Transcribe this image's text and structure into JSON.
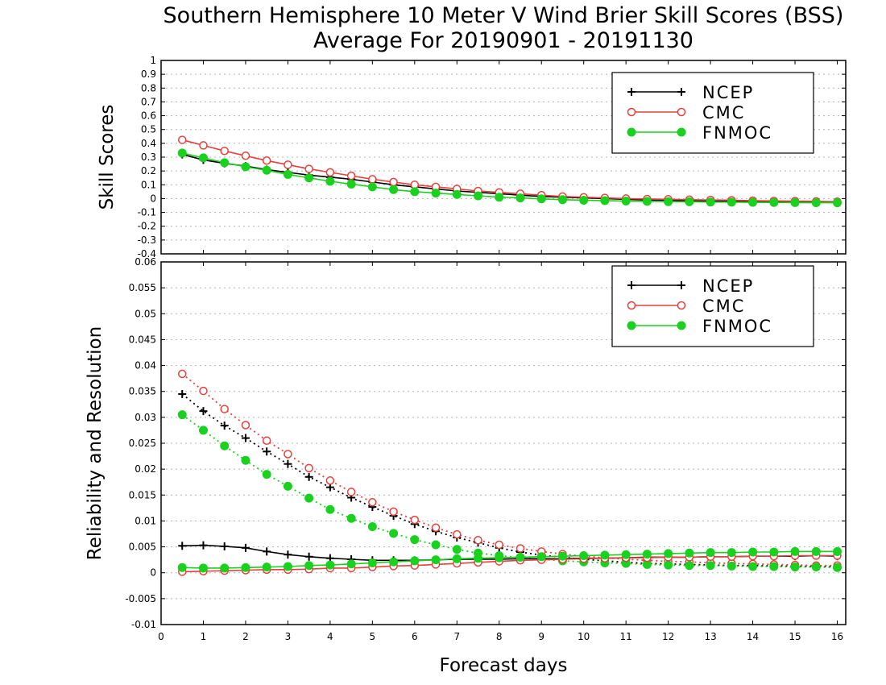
{
  "title_line1": "Southern Hemisphere 10 Meter V Wind Brier Skill Scores (BSS)",
  "title_line2": "Average For 20190901 - 20191130",
  "xlabel": "Forecast days",
  "colors": {
    "NCEP": "#000000",
    "CMC": "#e8403c",
    "FNMOC": "#19d11e"
  },
  "chart_data": [
    {
      "type": "line",
      "ylabel": "Skill Scores",
      "xlim": [
        0,
        16.2
      ],
      "ylim": [
        -0.4,
        1
      ],
      "x_ticks": [
        0,
        1,
        2,
        3,
        4,
        5,
        6,
        7,
        8,
        9,
        10,
        11,
        12,
        13,
        14,
        15,
        16
      ],
      "y_ticks": [
        -0.4,
        -0.3,
        -0.2,
        -0.1,
        0,
        0.1,
        0.2,
        0.3,
        0.4,
        0.5,
        0.6,
        0.7,
        0.8,
        0.9,
        1
      ],
      "y_tick_labels": [
        "-0.4",
        "-0.3",
        "-0.2",
        "-0.1",
        "0",
        "0.1",
        "0.2",
        "0.3",
        "0.4",
        "0.5",
        "0.6",
        "0.7",
        "0.8",
        "0.9",
        "1"
      ],
      "grid": true,
      "legend": "top-right",
      "x": [
        0.5,
        1,
        1.5,
        2,
        2.5,
        3,
        3.5,
        4,
        4.5,
        5,
        5.5,
        6,
        6.5,
        7,
        7.5,
        8,
        8.5,
        9,
        9.5,
        10,
        10.5,
        11,
        11.5,
        12,
        12.5,
        13,
        13.5,
        14,
        14.5,
        15,
        15.5,
        16
      ],
      "series": [
        {
          "name": "NCEP",
          "marker": "plus",
          "style": "solid",
          "values": [
            0.32,
            0.28,
            0.255,
            0.235,
            0.21,
            0.19,
            0.17,
            0.155,
            0.14,
            0.12,
            0.1,
            0.085,
            0.07,
            0.055,
            0.045,
            0.035,
            0.025,
            0.015,
            0.01,
            0.005,
            0.0,
            -0.005,
            -0.01,
            -0.012,
            -0.015,
            -0.017,
            -0.02,
            -0.022,
            -0.023,
            -0.025,
            -0.027,
            -0.028
          ]
        },
        {
          "name": "CMC",
          "marker": "open-circle",
          "style": "solid",
          "values": [
            0.425,
            0.385,
            0.345,
            0.31,
            0.275,
            0.245,
            0.215,
            0.19,
            0.165,
            0.14,
            0.12,
            0.1,
            0.085,
            0.07,
            0.055,
            0.045,
            0.035,
            0.025,
            0.015,
            0.01,
            0.005,
            0.0,
            -0.003,
            -0.005,
            -0.008,
            -0.01,
            -0.012,
            -0.015,
            -0.017,
            -0.018,
            -0.02,
            -0.022
          ]
        },
        {
          "name": "FNMOC",
          "marker": "filled-circle",
          "style": "solid",
          "values": [
            0.33,
            0.295,
            0.26,
            0.23,
            0.205,
            0.175,
            0.15,
            0.125,
            0.105,
            0.085,
            0.065,
            0.05,
            0.04,
            0.03,
            0.02,
            0.01,
            0.005,
            -0.002,
            -0.008,
            -0.012,
            -0.015,
            -0.018,
            -0.02,
            -0.022,
            -0.023,
            -0.025,
            -0.026,
            -0.027,
            -0.028,
            -0.029,
            -0.03,
            -0.03
          ]
        }
      ]
    },
    {
      "type": "line",
      "ylabel": "Reliability and Resolution",
      "xlim": [
        0,
        16.2
      ],
      "ylim": [
        -0.01,
        0.06
      ],
      "x_ticks": [
        0,
        1,
        2,
        3,
        4,
        5,
        6,
        7,
        8,
        9,
        10,
        11,
        12,
        13,
        14,
        15,
        16
      ],
      "x_tick_labels": [
        "0",
        "1",
        "2",
        "3",
        "4",
        "5",
        "6",
        "7",
        "8",
        "9",
        "10",
        "11",
        "12",
        "13",
        "14",
        "15",
        "16"
      ],
      "y_ticks": [
        -0.01,
        -0.005,
        0,
        0.005,
        0.01,
        0.015,
        0.02,
        0.025,
        0.03,
        0.035,
        0.04,
        0.045,
        0.05,
        0.055,
        0.06
      ],
      "y_tick_labels": [
        "-0.01",
        "-0.005",
        "0",
        "0.005",
        "0.01",
        "0.015",
        "0.02",
        "0.025",
        "0.03",
        "0.035",
        "0.04",
        "0.045",
        "0.05",
        "0.055",
        "0.06"
      ],
      "grid": true,
      "legend": "top-right",
      "x": [
        0.5,
        1,
        1.5,
        2,
        2.5,
        3,
        3.5,
        4,
        4.5,
        5,
        5.5,
        6,
        6.5,
        7,
        7.5,
        8,
        8.5,
        9,
        9.5,
        10,
        10.5,
        11,
        11.5,
        12,
        12.5,
        13,
        13.5,
        14,
        14.5,
        15,
        15.5,
        16
      ],
      "series": [
        {
          "name": "NCEP",
          "marker": "plus",
          "style": "dotted",
          "values": [
            0.0345,
            0.0312,
            0.0284,
            0.026,
            0.0234,
            0.021,
            0.0185,
            0.0165,
            0.0145,
            0.0127,
            0.011,
            0.0094,
            0.008,
            0.0068,
            0.0058,
            0.0048,
            0.004,
            0.0034,
            0.003,
            0.0026,
            0.0023,
            0.002,
            0.0018,
            0.0017,
            0.0016,
            0.0015,
            0.0014,
            0.0014,
            0.0013,
            0.0013,
            0.0012,
            0.0012
          ]
        },
        {
          "name": "CMC",
          "marker": "open-circle",
          "style": "dotted",
          "values": [
            0.0384,
            0.0351,
            0.0316,
            0.0285,
            0.0255,
            0.0229,
            0.0202,
            0.0178,
            0.0156,
            0.0136,
            0.0118,
            0.0102,
            0.0087,
            0.0074,
            0.0063,
            0.0054,
            0.0047,
            0.0041,
            0.0036,
            0.0032,
            0.0029,
            0.0026,
            0.0024,
            0.0022,
            0.0021,
            0.0019,
            0.0018,
            0.0017,
            0.0016,
            0.0015,
            0.0014,
            0.0014
          ]
        },
        {
          "name": "FNMOC",
          "marker": "filled-circle",
          "style": "dotted",
          "values": [
            0.0305,
            0.0275,
            0.0245,
            0.0217,
            0.019,
            0.0167,
            0.0144,
            0.0122,
            0.0105,
            0.0089,
            0.0076,
            0.0064,
            0.0054,
            0.0045,
            0.0038,
            0.0033,
            0.0029,
            0.0026,
            0.0023,
            0.0021,
            0.0019,
            0.0018,
            0.0016,
            0.0015,
            0.0014,
            0.0014,
            0.0013,
            0.0012,
            0.0012,
            0.0011,
            0.0011,
            0.001
          ]
        },
        {
          "name": "NCEP",
          "marker": "plus",
          "style": "solid",
          "values": [
            0.0052,
            0.0053,
            0.0051,
            0.0048,
            0.0041,
            0.0035,
            0.0031,
            0.0028,
            0.0026,
            0.0024,
            0.0024,
            0.0024,
            0.0025,
            0.0026,
            0.0026,
            0.0026,
            0.0027,
            0.0027,
            0.0027,
            0.0028,
            0.0028,
            0.0029,
            0.003,
            0.003,
            0.003,
            0.0031,
            0.0031,
            0.0032,
            0.0032,
            0.0032,
            0.0033,
            0.0032
          ]
        },
        {
          "name": "CMC",
          "marker": "open-circle",
          "style": "solid",
          "values": [
            0.0002,
            0.0003,
            0.0004,
            0.0005,
            0.0006,
            0.0006,
            0.0007,
            0.0009,
            0.0009,
            0.0011,
            0.0013,
            0.0014,
            0.0016,
            0.0018,
            0.002,
            0.0022,
            0.0024,
            0.0025,
            0.0026,
            0.0027,
            0.0028,
            0.0029,
            0.0029,
            0.003,
            0.003,
            0.0031,
            0.0031,
            0.0032,
            0.0032,
            0.0033,
            0.0033,
            0.0033
          ]
        },
        {
          "name": "FNMOC",
          "marker": "filled-circle",
          "style": "solid",
          "values": [
            0.001,
            0.0009,
            0.0009,
            0.001,
            0.0011,
            0.0012,
            0.0014,
            0.0015,
            0.0017,
            0.0019,
            0.0021,
            0.0023,
            0.0025,
            0.0027,
            0.0028,
            0.0029,
            0.003,
            0.0031,
            0.0032,
            0.0033,
            0.0034,
            0.0035,
            0.0036,
            0.0037,
            0.0038,
            0.0039,
            0.0039,
            0.004,
            0.004,
            0.0041,
            0.0041,
            0.0041
          ]
        }
      ]
    }
  ]
}
